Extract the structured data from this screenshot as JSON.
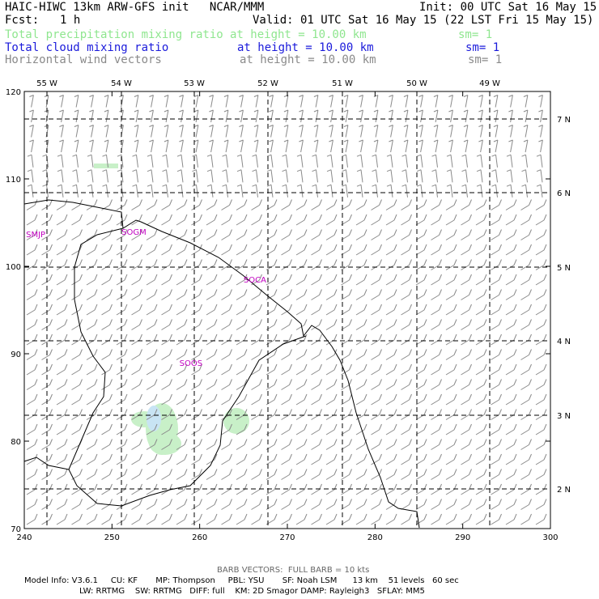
{
  "header": {
    "title": "HAIC-HIWC 13km ARW-GFS init   NCAR/MMM",
    "init": "Init: 00 UTC Sat 16 May 15",
    "fcst_label": "Fcst:",
    "fcst_value": "1 h",
    "valid": "Valid: 01 UTC Sat 16 May 15 (22 LST Fri 15 May 15)",
    "fields": [
      {
        "name": "Total precipitation mixing ratio",
        "height": "at height = 10.00 km",
        "sm": "sm= 1",
        "color": "#8fe68f"
      },
      {
        "name": "Total cloud mixing ratio",
        "height": "at height = 10.00 km",
        "sm": "sm= 1",
        "color": "#1a1adb"
      },
      {
        "name": "Horizontal wind vectors",
        "height": "at height = 10.00 km",
        "sm": "sm= 1",
        "color": "#8a8a8a"
      }
    ]
  },
  "map": {
    "x_ticks": [
      "240",
      "250",
      "260",
      "270",
      "280",
      "290",
      "300"
    ],
    "y_ticks": [
      "70",
      "80",
      "90",
      "100",
      "110",
      "120"
    ],
    "lon_labels": [
      "55 W",
      "54 W",
      "53 W",
      "52 W",
      "51 W",
      "50 W",
      "49 W"
    ],
    "lat_labels": [
      "2 N",
      "3 N",
      "4 N",
      "5 N",
      "6 N",
      "7 N"
    ],
    "stations": [
      {
        "id": "SMJP",
        "x": 241.3,
        "y": 103.7
      },
      {
        "id": "SOGM",
        "x": 252.5,
        "y": 104.0
      },
      {
        "id": "SOCA",
        "x": 266.3,
        "y": 98.5
      },
      {
        "id": "SOOS",
        "x": 259.0,
        "y": 89.0
      }
    ],
    "colors": {
      "precip": "#c8f0c8",
      "cloud": "#c8e4f4",
      "barb": "#8a8a8a",
      "coast": "#000000",
      "station": "#c000c0"
    }
  },
  "footer": {
    "barb_note": "BARB VECTORS:  FULL BARB = 10 kts",
    "line1": "Model Info: V3.6.1     CU: KF       MP: Thompson     PBL: YSU       SF: Noah LSM      13 km    51 levels   60 sec",
    "line2": "LW: RRTMG    SW: RRTMG   DIFF: full    KM: 2D Smagor DAMP: Rayleigh3   SFLAY: MM5"
  }
}
